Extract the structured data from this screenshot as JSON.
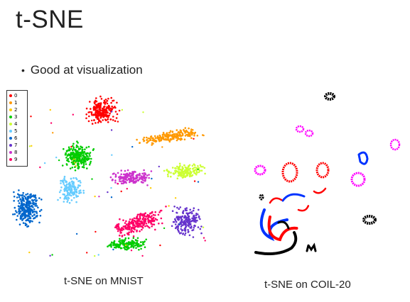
{
  "slide": {
    "title": "t-SNE",
    "bullet": "Good at visualization",
    "caption_mnist": "t-SNE on MNIST",
    "caption_coil": "t-SNE on COIL-20"
  },
  "mnist_legend": [
    {
      "label": "0",
      "color": "#ff0000"
    },
    {
      "label": "1",
      "color": "#ff9900"
    },
    {
      "label": "2",
      "color": "#ffcc00"
    },
    {
      "label": "3",
      "color": "#00cc00"
    },
    {
      "label": "4",
      "color": "#ccff33"
    },
    {
      "label": "5",
      "color": "#66ccff"
    },
    {
      "label": "6",
      "color": "#0066cc"
    },
    {
      "label": "7",
      "color": "#6633cc"
    },
    {
      "label": "8",
      "color": "#cc33cc"
    },
    {
      "label": "9",
      "color": "#ff0066"
    }
  ],
  "colors": {
    "coil_black": "#000000",
    "coil_blue": "#0033ff",
    "coil_red": "#ff0000",
    "coil_magenta": "#ff00ff"
  }
}
